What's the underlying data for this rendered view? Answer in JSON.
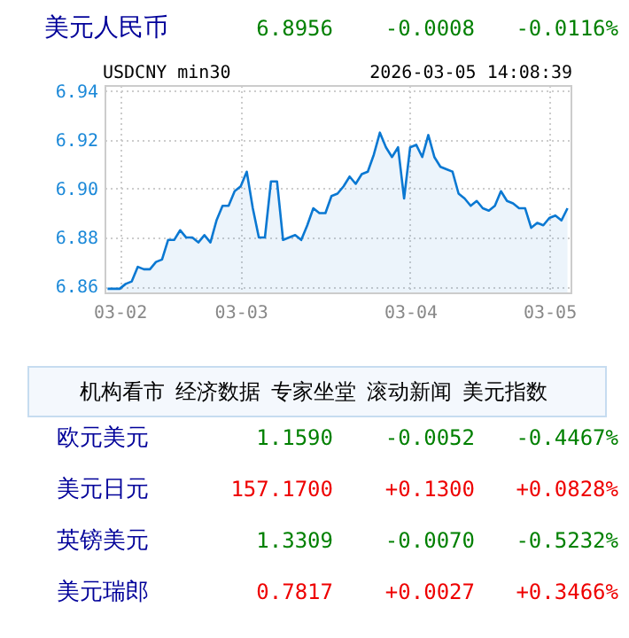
{
  "chart_data": {
    "type": "area",
    "title": "美元人民币",
    "annotations": [
      "6.8956",
      "-0.0008",
      "-0.0116%",
      "USDCNY min30",
      "2026-03-05 14:08:39",
      "机构看市",
      "经济数据",
      "专家坐堂",
      "滚动新闻",
      "美元指数",
      "欧元美元",
      "1.1590",
      "-0.0052",
      "-0.4467%",
      "美元日元",
      "157.1700",
      "+0.1300",
      "+0.0828%",
      "英镑美元",
      "1.3309",
      "-0.0070",
      "-0.5232%",
      "美元瑞郎",
      "0.7817",
      "+0.0027",
      "+0.3466%"
    ],
    "categories": [
      null,
      null,
      "03-02",
      null,
      null,
      null,
      null,
      null,
      null,
      null,
      null,
      null,
      null,
      null,
      null,
      null,
      null,
      null,
      null,
      null,
      null,
      null,
      "03-03",
      null,
      null,
      null,
      null,
      null,
      null,
      null,
      null,
      null,
      null,
      null,
      null,
      null,
      null,
      null,
      null,
      null,
      null,
      null,
      null,
      null,
      null,
      null,
      null,
      null,
      null,
      null,
      "03-04",
      null,
      null,
      null,
      null,
      null,
      null,
      null,
      null,
      null,
      null,
      null,
      null,
      null,
      null,
      null,
      null,
      null,
      null,
      null,
      null,
      null,
      null,
      "03-05",
      null,
      null,
      null
    ],
    "series": [
      {
        "color": "#0a78d2",
        "values": [
          6.859,
          6.859,
          6.859,
          6.861,
          6.862,
          6.868,
          6.867,
          6.867,
          6.87,
          6.871,
          6.879,
          6.879,
          6.883,
          6.88,
          6.88,
          6.878,
          6.881,
          6.878,
          6.887,
          6.893,
          6.893,
          6.899,
          6.901,
          6.907,
          6.892,
          6.88,
          6.88,
          6.903,
          6.903,
          6.879,
          6.88,
          6.881,
          6.879,
          6.885,
          6.892,
          6.89,
          6.89,
          6.897,
          6.898,
          6.901,
          6.905,
          6.902,
          6.906,
          6.907,
          6.914,
          6.923,
          6.917,
          6.913,
          6.917,
          6.896,
          6.917,
          6.918,
          6.913,
          6.922,
          6.913,
          6.909,
          6.908,
          6.907,
          6.898,
          6.896,
          6.893,
          6.895,
          6.892,
          6.891,
          6.893,
          6.899,
          6.895,
          6.894,
          6.892,
          6.892,
          6.884,
          6.886,
          6.885,
          6.888,
          6.889,
          6.887,
          6.892
        ]
      }
    ],
    "ylim": [
      6.8575,
      6.9425
    ],
    "yticks": [
      6.86,
      6.88,
      {
        "value": 6.9,
        "label": "6.90"
      },
      6.92,
      6.94
    ],
    "grid": true
  }
}
